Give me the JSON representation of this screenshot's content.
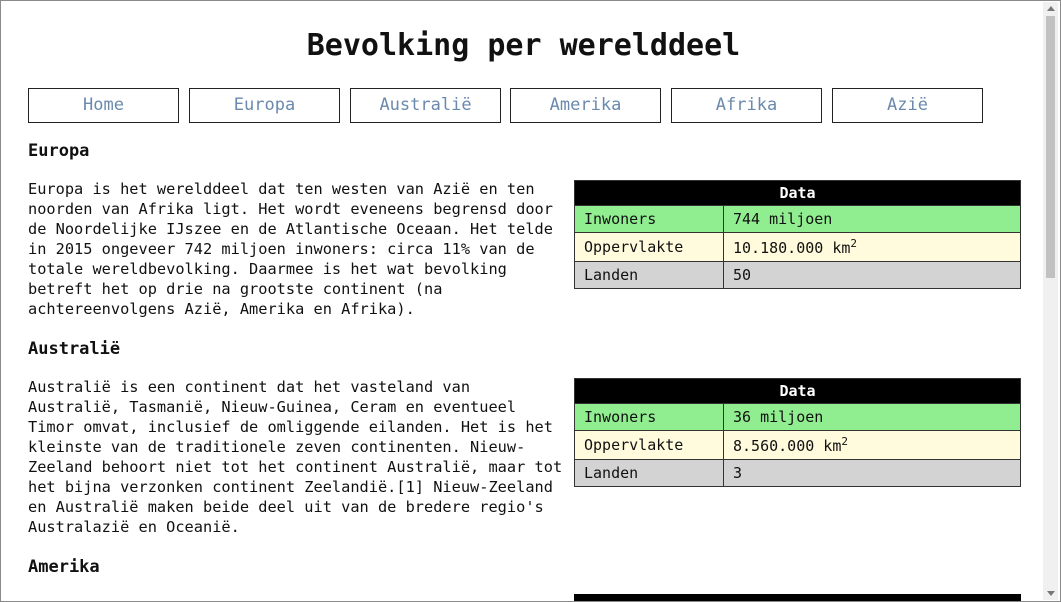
{
  "header": {
    "title": "Bevolking per werelddeel"
  },
  "nav": [
    "Home",
    "Europa",
    "Australië",
    "Amerika",
    "Afrika",
    "Azië"
  ],
  "sections": [
    {
      "heading": "Europa",
      "paragraph": [
        "Europa is het werelddeel dat ten westen van Azië en ten",
        "noorden van Afrika ligt. Het wordt eveneens begrensd door",
        "de Noordelijke IJszee en de Atlantische Oceaan. Het telde",
        "in 2015 ongeveer 742 miljoen inwoners: circa 11% van de",
        "totale wereldbevolking. Daarmee is het wat bevolking",
        "betreft het op drie na grootste continent (na",
        "achtereenvolgens Azië, Amerika en Afrika)."
      ],
      "table": {
        "header": "Data",
        "rows": [
          {
            "label": "Inwoners",
            "value": "744 miljoen"
          },
          {
            "label": "Oppervlakte",
            "value": "10.180.000 km",
            "sup": "2"
          },
          {
            "label": "Landen",
            "value": "50"
          }
        ]
      }
    },
    {
      "heading": "Australië",
      "paragraph": [
        "Australië is een continent dat het vasteland van",
        "Australië, Tasmanië, Nieuw-Guinea, Ceram en eventueel",
        "Timor omvat, inclusief de omliggende eilanden. Het is het",
        "kleinste van de traditionele zeven continenten. Nieuw-",
        "Zeeland behoort niet tot het continent Australië, maar tot",
        "het bijna verzonken continent Zeelandië.[1] Nieuw-Zeeland",
        "en Australië maken beide deel uit van de bredere regio's",
        "Australazië en Oceanië."
      ],
      "table": {
        "header": "Data",
        "rows": [
          {
            "label": "Inwoners",
            "value": "36 miljoen"
          },
          {
            "label": "Oppervlakte",
            "value": "8.560.000 km",
            "sup": "2"
          },
          {
            "label": "Landen",
            "value": "3"
          }
        ]
      }
    },
    {
      "heading": "Amerika"
    }
  ]
}
